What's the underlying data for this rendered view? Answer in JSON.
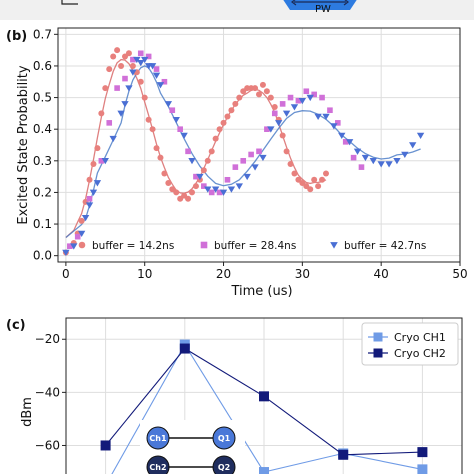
{
  "top_strip": {
    "pw_label": "PW"
  },
  "panel_b": {
    "label": "(b)",
    "chart_data": {
      "type": "scatter",
      "xlabel": "Time (us)",
      "ylabel": "Excited State Probability",
      "xlim": [
        -1,
        50
      ],
      "ylim": [
        -0.02,
        0.72
      ],
      "xticks": [
        0,
        10,
        20,
        30,
        40,
        50
      ],
      "yticks": [
        0.0,
        0.1,
        0.2,
        0.3,
        0.4,
        0.5,
        0.6,
        0.7
      ],
      "ytick_labels": [
        "0.0",
        "0.1",
        "0.2",
        "0.3",
        "0.4",
        "0.5",
        "0.6",
        "0.7"
      ],
      "grid": true,
      "legend_position": "bottom",
      "series": [
        {
          "name": "buffer = 14.2ns",
          "marker": "circle",
          "color": "#e8807d",
          "fit_color": "#d96a6a",
          "x": [
            0,
            1,
            1.5,
            2,
            2.5,
            3,
            3.5,
            4,
            4.5,
            5,
            5.5,
            6,
            6.5,
            7,
            7.5,
            8,
            8.5,
            9,
            9.5,
            10,
            10.5,
            11,
            11.5,
            12,
            12.5,
            13,
            13.5,
            14,
            14.5,
            15,
            15.5,
            16,
            16.5,
            17,
            17.5,
            18,
            18.5,
            19,
            19.5,
            20,
            20.5,
            21,
            21.5,
            22,
            22.5,
            23,
            23.5,
            24,
            24.5,
            25,
            25.5,
            26,
            26.5,
            27,
            27.5,
            28,
            28.5,
            29,
            29.5,
            30,
            30.5,
            31,
            31.5,
            32,
            32.5,
            33
          ],
          "y": [
            0.01,
            0.04,
            0.07,
            0.11,
            0.17,
            0.24,
            0.29,
            0.34,
            0.45,
            0.53,
            0.59,
            0.63,
            0.65,
            0.6,
            0.63,
            0.64,
            0.6,
            0.58,
            0.55,
            0.5,
            0.43,
            0.4,
            0.34,
            0.31,
            0.26,
            0.23,
            0.21,
            0.2,
            0.18,
            0.19,
            0.18,
            0.2,
            0.22,
            0.24,
            0.27,
            0.3,
            0.33,
            0.37,
            0.4,
            0.42,
            0.44,
            0.46,
            0.48,
            0.5,
            0.52,
            0.53,
            0.53,
            0.53,
            0.51,
            0.54,
            0.52,
            0.5,
            0.47,
            0.43,
            0.38,
            0.33,
            0.29,
            0.26,
            0.24,
            0.23,
            0.22,
            0.21,
            0.24,
            0.22,
            0.24,
            0.26
          ]
        },
        {
          "name": "buffer = 28.4ns",
          "marker": "square",
          "color": "#d070d8",
          "x": [
            0.5,
            1.5,
            3,
            4.5,
            5.5,
            6.5,
            7.5,
            8.5,
            9.5,
            10.5,
            11.5,
            12.5,
            13.5,
            14.5,
            15.5,
            16.5,
            17.5,
            18.5,
            19.5,
            20.5,
            21.5,
            22.5,
            23.5,
            24.5,
            25.5,
            26.5,
            27.5,
            28.5,
            29.5,
            30.5,
            31.5,
            32.5,
            33.5,
            34.5,
            35.5,
            36.5,
            37.5
          ],
          "y": [
            0.03,
            0.06,
            0.18,
            0.3,
            0.42,
            0.53,
            0.56,
            0.62,
            0.64,
            0.63,
            0.59,
            0.55,
            0.46,
            0.4,
            0.33,
            0.25,
            0.22,
            0.2,
            0.2,
            0.24,
            0.28,
            0.3,
            0.32,
            0.33,
            0.4,
            0.45,
            0.48,
            0.5,
            0.49,
            0.52,
            0.51,
            0.5,
            0.46,
            0.42,
            0.36,
            0.31,
            0.28
          ]
        },
        {
          "name": "buffer = 42.7ns",
          "marker": "triangle-down",
          "color": "#4a6fd4",
          "fit_color": "#4f7fc8",
          "x": [
            0,
            1,
            2,
            2.5,
            3,
            3.5,
            4,
            5,
            6,
            7,
            7.5,
            8,
            8.5,
            9,
            9.5,
            10,
            10.5,
            11,
            11.5,
            12,
            13,
            14,
            15,
            16,
            17,
            18,
            19,
            20,
            21,
            22,
            23,
            24,
            25,
            26,
            27,
            28,
            29,
            30,
            31,
            32,
            33,
            34,
            35,
            36,
            37,
            38,
            39,
            40,
            41,
            42,
            43,
            44,
            45
          ],
          "y": [
            0.01,
            0.03,
            0.07,
            0.12,
            0.16,
            0.2,
            0.23,
            0.3,
            0.37,
            0.45,
            0.48,
            0.53,
            0.58,
            0.62,
            0.61,
            0.62,
            0.6,
            0.6,
            0.57,
            0.54,
            0.48,
            0.43,
            0.38,
            0.3,
            0.25,
            0.21,
            0.21,
            0.2,
            0.21,
            0.22,
            0.25,
            0.28,
            0.31,
            0.4,
            0.42,
            0.45,
            0.47,
            0.49,
            0.5,
            0.44,
            0.44,
            0.41,
            0.38,
            0.36,
            0.33,
            0.31,
            0.3,
            0.29,
            0.29,
            0.3,
            0.32,
            0.35,
            0.38
          ]
        }
      ]
    }
  },
  "panel_c": {
    "label": "(c)",
    "chart_data": {
      "type": "line",
      "ylabel": "dBm",
      "yticks": [
        -20,
        -40,
        -60
      ],
      "ytick_labels": [
        "−20",
        "−40",
        "−60"
      ],
      "ylim": [
        -73,
        -12
      ],
      "x": [
        0,
        1,
        2,
        3,
        4
      ],
      "xlim": [
        -0.5,
        4.5
      ],
      "grid": true,
      "legend_position": "top-right",
      "series": [
        {
          "name": "Cryo CH1",
          "color": "#6f9be6",
          "marker": "square",
          "values": [
            -75,
            -22,
            -70,
            -63,
            -69
          ]
        },
        {
          "name": "Cryo CH2",
          "color": "#121a7a",
          "marker": "square",
          "values": [
            -60,
            -23.5,
            -41.5,
            -63.5,
            -62.5
          ]
        }
      ]
    },
    "diagram": {
      "nodes": [
        "Ch1",
        "Q1",
        "Ch2",
        "Q2"
      ],
      "node_color": "#4a78d8",
      "node_color_dark": "#1f2d5e"
    }
  }
}
